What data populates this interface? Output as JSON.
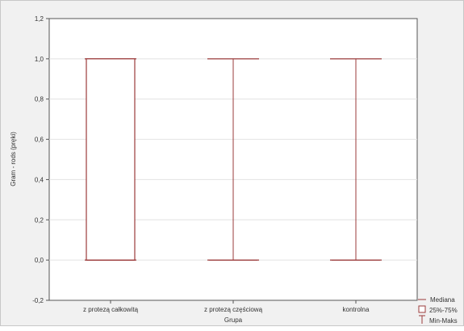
{
  "colors": {
    "box": "#9b3b3b",
    "plot_bg": "#ffffff",
    "figure_bg": "#f1f1f1",
    "grid": "#e2e2e2",
    "axis": "#555555"
  },
  "chart_data": {
    "type": "boxplot",
    "title": "",
    "xlabel": "Grupa",
    "ylabel": "Gram - rods (pręki)",
    "ylim": [
      -0.2,
      1.2
    ],
    "yticks": [
      -0.2,
      0.0,
      0.2,
      0.4,
      0.6,
      0.8,
      1.0,
      1.2
    ],
    "ytick_labels": [
      "-0,2",
      "0,0",
      "0,2",
      "0,4",
      "0,6",
      "0,8",
      "1,0",
      "1,2"
    ],
    "grid": true,
    "categories": [
      "z protezą całkowitą",
      "z protezą częściową",
      "kontrolna"
    ],
    "groups": [
      {
        "name": "z protezą całkowitą",
        "median": 0,
        "q1": 0,
        "q3": 1,
        "min": 0,
        "max": 1
      },
      {
        "name": "z protezą częściową",
        "median": 0,
        "q1": 0,
        "q3": 0,
        "min": 0,
        "max": 1
      },
      {
        "name": "kontrolna",
        "median": 0,
        "q1": 0,
        "q3": 0,
        "min": 0,
        "max": 1
      }
    ],
    "legend": {
      "position": "bottom-right",
      "items": [
        {
          "symbol": "median",
          "label": "Mediana"
        },
        {
          "symbol": "box",
          "label": "25%-75%"
        },
        {
          "symbol": "whisker",
          "label": "Min-Maks"
        }
      ]
    }
  }
}
